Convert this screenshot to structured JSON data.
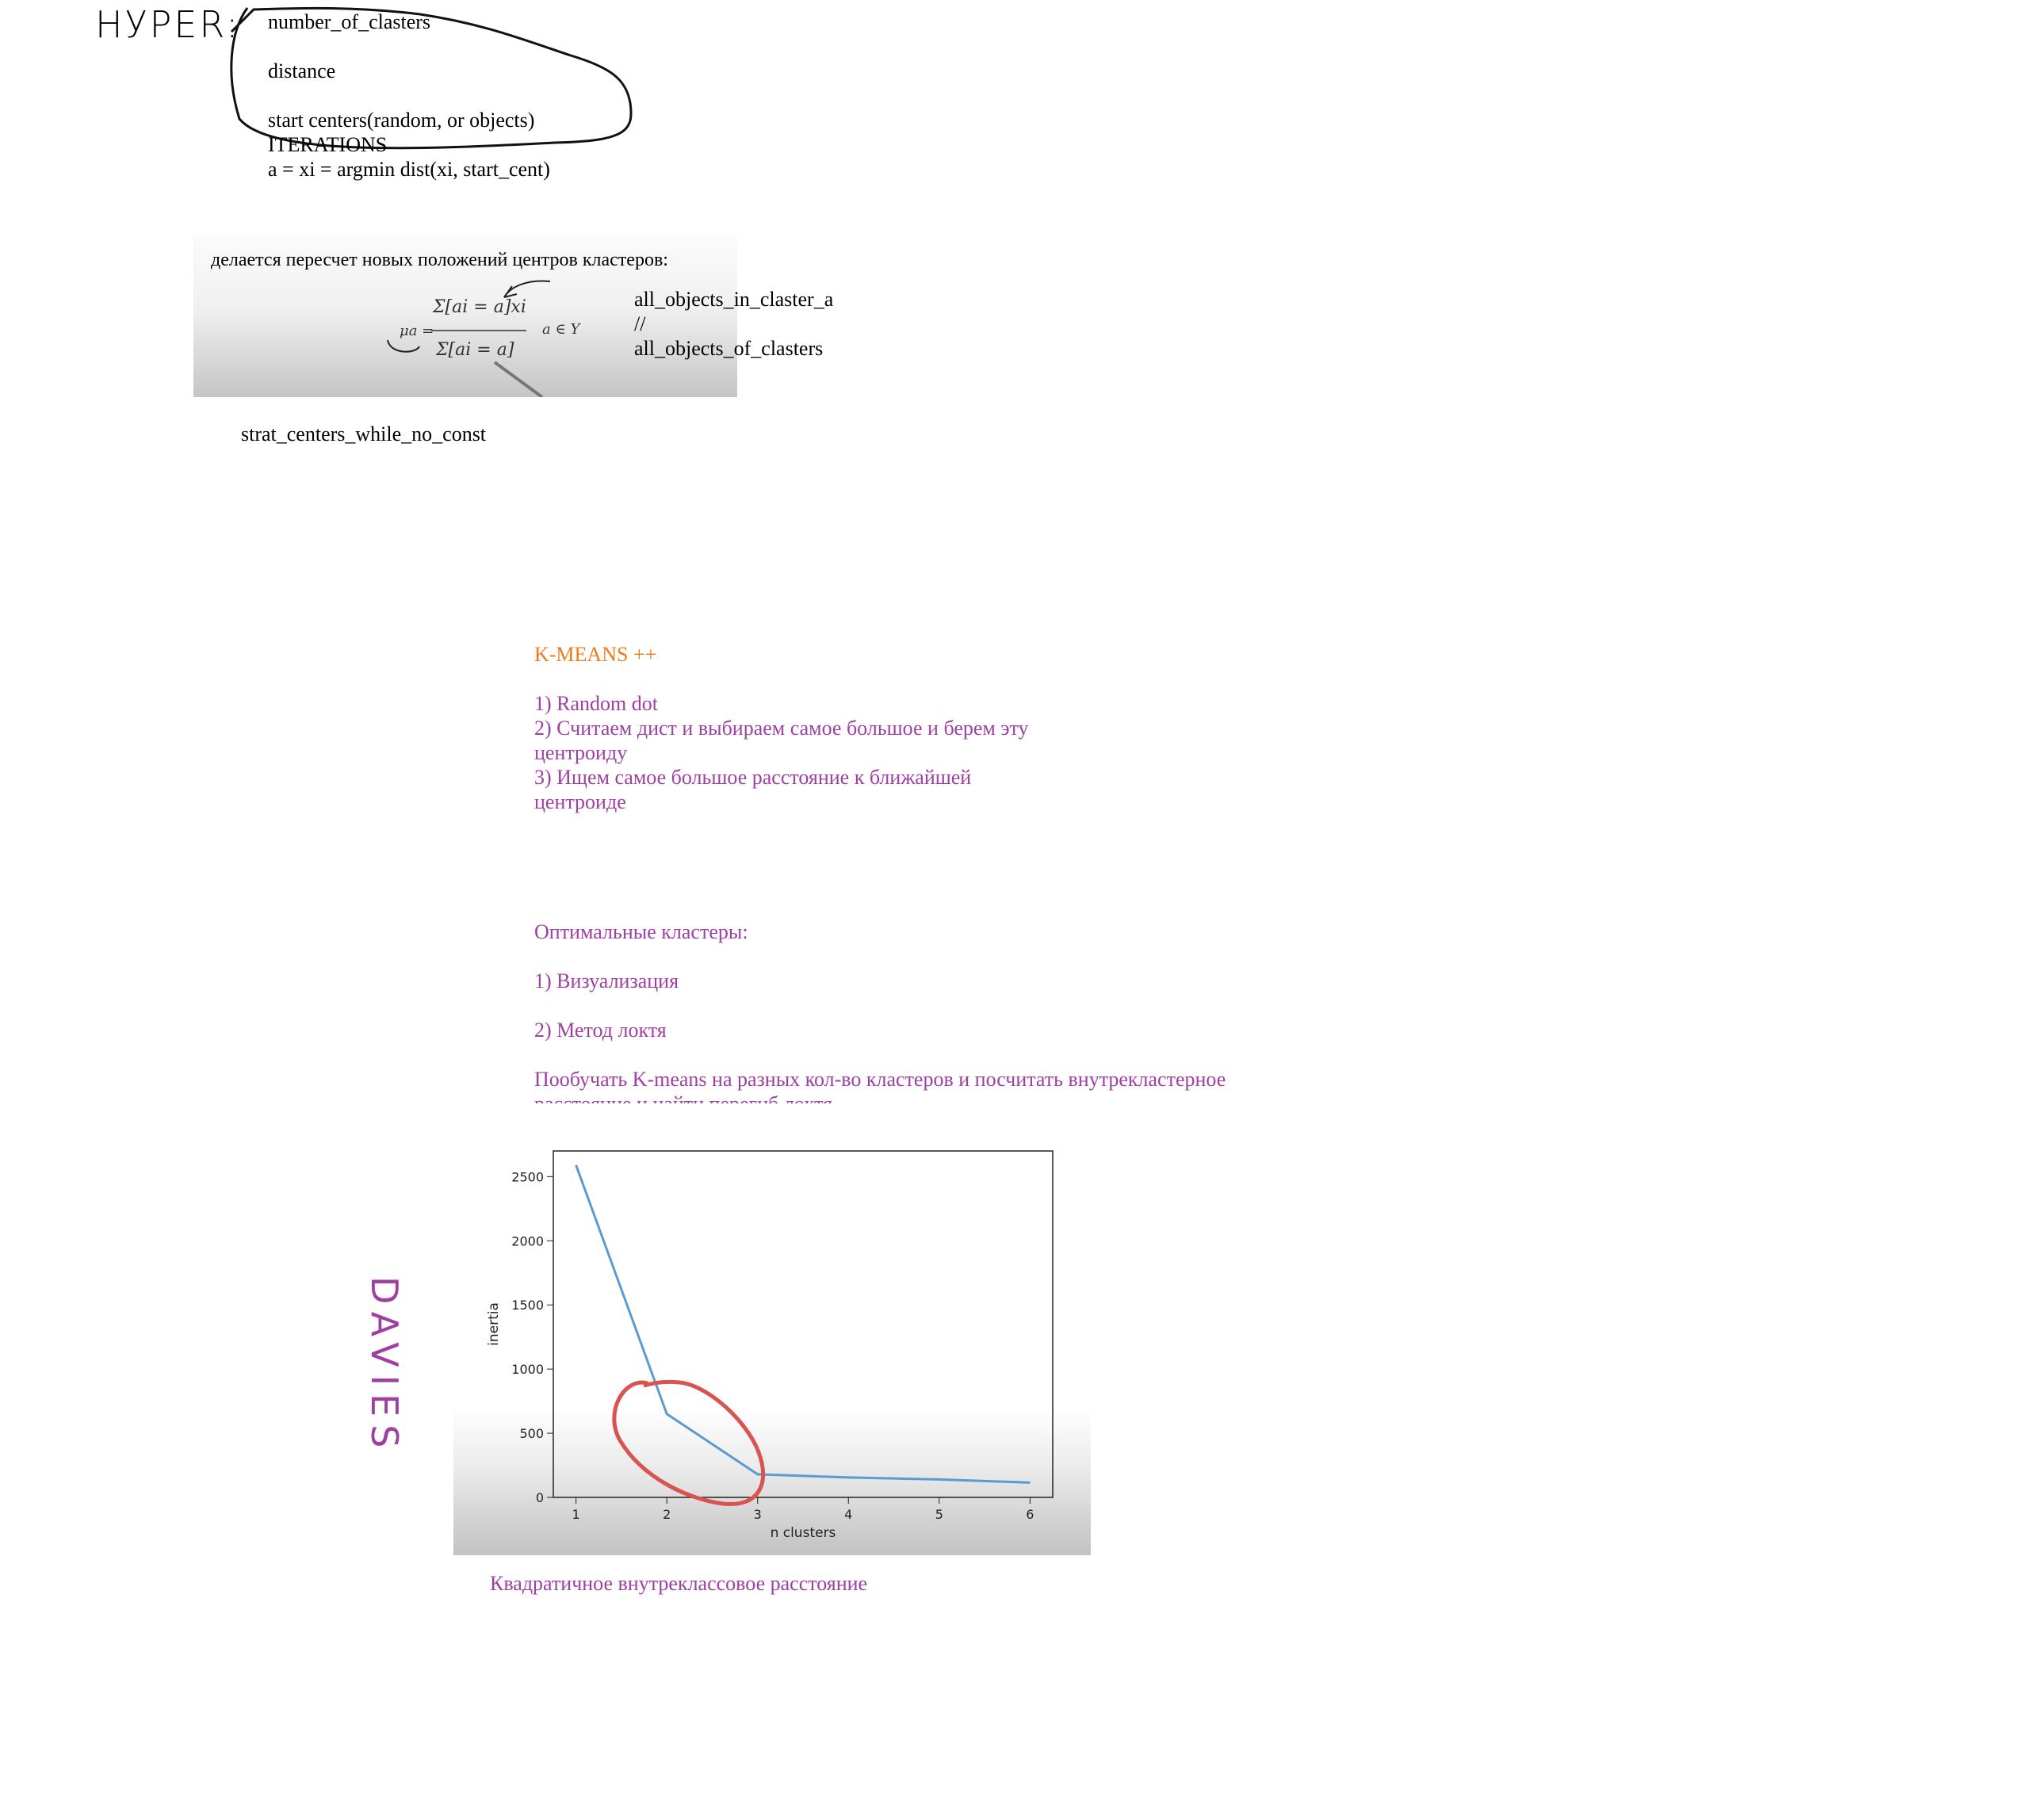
{
  "hyper": {
    "label": "НУРЕR:",
    "lines": [
      "number_of_clasters",
      "",
      "distance",
      "",
      "start centers(random, or objects)",
      "ITERATIONS",
      "a = xi = argmin dist(xi, start_cent)"
    ]
  },
  "formula": {
    "title": "делается пересчет новых положений центров кластеров:",
    "mu": "μa =",
    "numerator": "Σ[ai = a]xi",
    "denominator": "Σ[ai = a]",
    "domain": "a ∈ Y",
    "note_lines": [
      "all_objects_in_claster_a",
      "//",
      "all_objects_of_clasters"
    ]
  },
  "strat_centers": "strat_centers_while_no_const",
  "kmeans": {
    "title": "K-MEANS ++",
    "step1": "1)  Random dot",
    "step2_line1": "2) Считаем дист и выбираем самое большое и берем эту",
    "step2_line2": "центроиду",
    "step3_line1": "3)  Ищем самое большое расстояние к ближайшей",
    "step3_line2": "центроиде"
  },
  "optimal": {
    "title": "Оптимальные кластеры:",
    "item1": "1) Визуализация",
    "item2": "2)  Метод локтя",
    "desc_line1": "Пообучать K-means на разных кол-во кластеров и посчитать внутрекластерное",
    "desc_line2": "расстояние и найти перегиб локтя"
  },
  "side_handwriting": "DAVIES",
  "caption": "Квадратичное внутреклассовое расстояние",
  "colors": {
    "ink_purple": "#9f3fa4",
    "ink_orange": "#f07a1c",
    "line_blue": "#5b9bd0",
    "marker_red": "#d9534f"
  },
  "chart_data": {
    "type": "line",
    "x": [
      1,
      2,
      3,
      4,
      5,
      6
    ],
    "y": [
      2590,
      650,
      180,
      155,
      140,
      115
    ],
    "xlabel": "n clusters",
    "ylabel": "inertia",
    "xticks": [
      "1",
      "2",
      "3",
      "4",
      "5",
      "6"
    ],
    "yticks": [
      "0",
      "500",
      "1000",
      "1500",
      "2000",
      "2500"
    ],
    "xlim": [
      0.75,
      6.25
    ],
    "ylim": [
      0,
      2700
    ],
    "grid": false
  }
}
